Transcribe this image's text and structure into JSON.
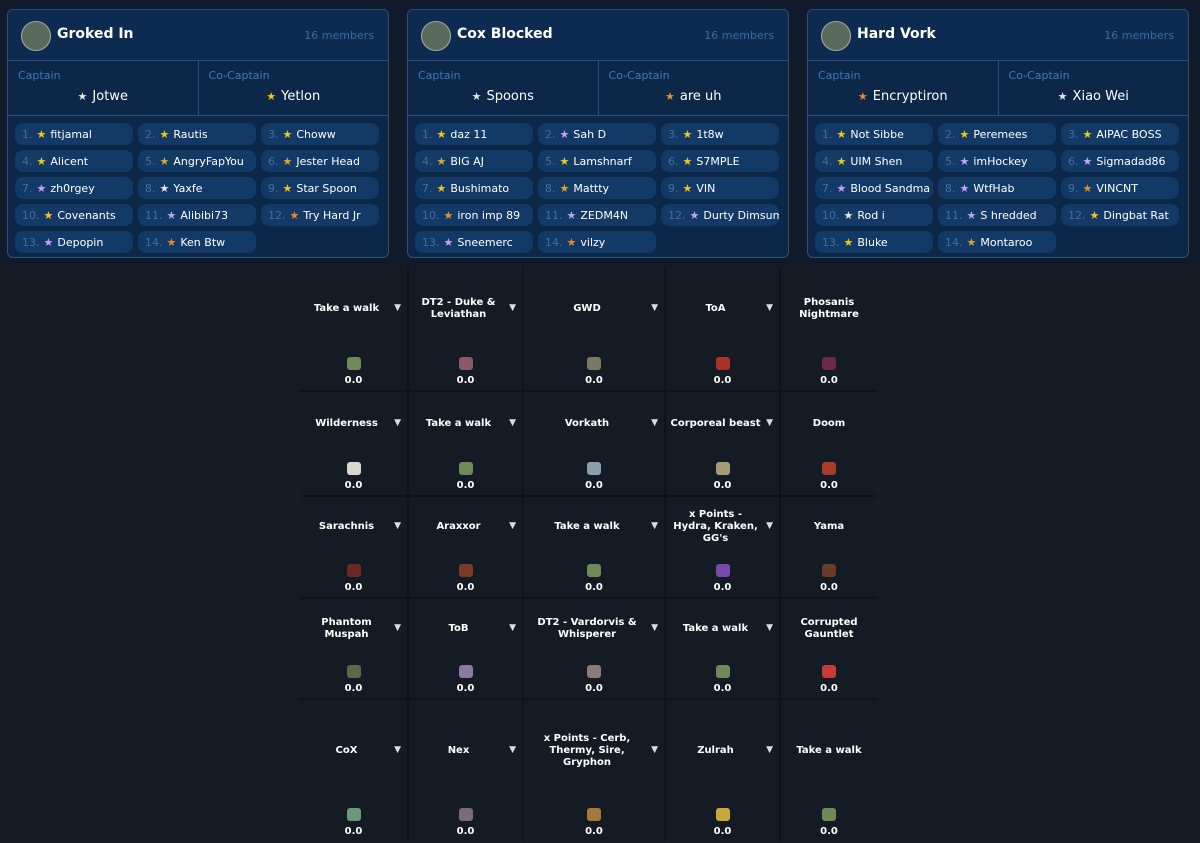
{
  "teams": [
    {
      "name": "Groked In",
      "member_count": "16 members",
      "captain_label": "Captain",
      "captain": "Jotwe",
      "captain_color": "#e8e8e8",
      "co_captain_label": "Co-Captain",
      "co_captain": "Yetlon",
      "co_captain_color": "#f5c518",
      "members": [
        {
          "rank": "1.",
          "name": "fitjamal",
          "color": "#f5c518"
        },
        {
          "rank": "2.",
          "name": "Rautis",
          "color": "#f5c518"
        },
        {
          "rank": "3.",
          "name": "Choww",
          "color": "#f5c518"
        },
        {
          "rank": "4.",
          "name": "Alicent",
          "color": "#f5c518"
        },
        {
          "rank": "5.",
          "name": "AngryFapYou",
          "color": "#e0a52a"
        },
        {
          "rank": "6.",
          "name": "Jester Head",
          "color": "#e0a52a"
        },
        {
          "rank": "7.",
          "name": "zh0rgey",
          "color": "#c9a0ff"
        },
        {
          "rank": "8.",
          "name": "Yaxfe",
          "color": "#e8e8e8"
        },
        {
          "rank": "9.",
          "name": "Star Spoon",
          "color": "#f5c518"
        },
        {
          "rank": "10.",
          "name": "Covenants",
          "color": "#f5c518"
        },
        {
          "rank": "11.",
          "name": "Alibibi73",
          "color": "#c9a0ff"
        },
        {
          "rank": "12.",
          "name": "Try Hard Jr",
          "color": "#f08a24"
        },
        {
          "rank": "13.",
          "name": "Depopin",
          "color": "#c9a0ff"
        },
        {
          "rank": "14.",
          "name": "Ken Btw",
          "color": "#f08a24"
        }
      ]
    },
    {
      "name": "Cox Blocked",
      "member_count": "16 members",
      "captain_label": "Captain",
      "captain": "Spoons",
      "captain_color": "#e8e8e8",
      "co_captain_label": "Co-Captain",
      "co_captain": "are uh",
      "co_captain_color": "#f08a24",
      "members": [
        {
          "rank": "1.",
          "name": "daz 11",
          "color": "#f5c518"
        },
        {
          "rank": "2.",
          "name": "Sah D",
          "color": "#c9a0ff"
        },
        {
          "rank": "3.",
          "name": "1t8w",
          "color": "#f5c518"
        },
        {
          "rank": "4.",
          "name": "BIG AJ",
          "color": "#e0a52a"
        },
        {
          "rank": "5.",
          "name": "Lamshnarf",
          "color": "#f5c518"
        },
        {
          "rank": "6.",
          "name": "S7MPLE",
          "color": "#f5c518"
        },
        {
          "rank": "7.",
          "name": "Bushimato",
          "color": "#f5c518"
        },
        {
          "rank": "8.",
          "name": "Mattty",
          "color": "#e0a52a"
        },
        {
          "rank": "9.",
          "name": "VIN",
          "color": "#f5c518"
        },
        {
          "rank": "10.",
          "name": "iron imp 89",
          "color": "#f08a24"
        },
        {
          "rank": "11.",
          "name": "ZEDM4N",
          "color": "#c9a0ff"
        },
        {
          "rank": "12.",
          "name": "Durty Dimsum",
          "color": "#c9a0ff"
        },
        {
          "rank": "13.",
          "name": "Sneemerc",
          "color": "#c9a0ff"
        },
        {
          "rank": "14.",
          "name": "vilzy",
          "color": "#f08a24"
        }
      ]
    },
    {
      "name": "Hard Vork",
      "member_count": "16 members",
      "captain_label": "Captain",
      "captain": "Encryptiron",
      "captain_color": "#f08a24",
      "co_captain_label": "Co-Captain",
      "co_captain": "Xiao Wei",
      "co_captain_color": "#e8e8e8",
      "members": [
        {
          "rank": "1.",
          "name": "Not Sibbe",
          "color": "#f5c518"
        },
        {
          "rank": "2.",
          "name": "Peremees",
          "color": "#f5c518"
        },
        {
          "rank": "3.",
          "name": "AIPAC BOSS",
          "color": "#f5c518"
        },
        {
          "rank": "4.",
          "name": "UIM Shen",
          "color": "#f5c518"
        },
        {
          "rank": "5.",
          "name": "imHockey",
          "color": "#c9a0ff"
        },
        {
          "rank": "6.",
          "name": "Sigmadad86",
          "color": "#c9a0ff"
        },
        {
          "rank": "7.",
          "name": "Blood Sandma",
          "color": "#c9a0ff"
        },
        {
          "rank": "8.",
          "name": "WtfHab",
          "color": "#c9a0ff"
        },
        {
          "rank": "9.",
          "name": "VINCNT",
          "color": "#f08a24"
        },
        {
          "rank": "10.",
          "name": "Rod i",
          "color": "#e8e8e8"
        },
        {
          "rank": "11.",
          "name": "S hredded",
          "color": "#c9a0ff"
        },
        {
          "rank": "12.",
          "name": "Dingbat Rat",
          "color": "#f5c518"
        },
        {
          "rank": "13.",
          "name": "Bluke",
          "color": "#f5c518"
        },
        {
          "rank": "14.",
          "name": "Montaroo",
          "color": "#e0a52a"
        }
      ]
    }
  ],
  "board": {
    "rows": [
      [
        {
          "label": "Take a walk",
          "score": "0.0",
          "icon_color": "#6e8a5a"
        },
        {
          "label": "DT2 - Duke & Leviathan",
          "score": "0.0",
          "icon_color": "#8a5a6a"
        },
        {
          "label": "GWD",
          "score": "0.0",
          "icon_color": "#7a7a62"
        },
        {
          "label": "ToA",
          "score": "0.0",
          "icon_color": "#a83228"
        },
        {
          "label": "Phosanis Nightmare",
          "score": "0.0",
          "icon_color": "#6a2a4a"
        }
      ],
      [
        {
          "label": "Wilderness",
          "score": "0.0",
          "icon_color": "#d8d8d0"
        },
        {
          "label": "Take a walk",
          "score": "0.0",
          "icon_color": "#6e8a5a"
        },
        {
          "label": "Vorkath",
          "score": "0.0",
          "icon_color": "#8aa0a8"
        },
        {
          "label": "Corporeal beast",
          "score": "0.0",
          "icon_color": "#a89a78"
        },
        {
          "label": "Doom",
          "score": "0.0",
          "icon_color": "#a83a28"
        }
      ],
      [
        {
          "label": "Sarachnis",
          "score": "0.0",
          "icon_color": "#6a2a22"
        },
        {
          "label": "Araxxor",
          "score": "0.0",
          "icon_color": "#7a3a28"
        },
        {
          "label": "Take a walk",
          "score": "0.0",
          "icon_color": "#6e8a5a"
        },
        {
          "label": "x Points - Hydra, Kraken, GG's",
          "score": "0.0",
          "icon_color": "#7a4aa8"
        },
        {
          "label": "Yama",
          "score": "0.0",
          "icon_color": "#6a3a2a"
        }
      ],
      [
        {
          "label": "Phantom Muspah",
          "score": "0.0",
          "icon_color": "#5a6a48"
        },
        {
          "label": "ToB",
          "score": "0.0",
          "icon_color": "#8a7aa0"
        },
        {
          "label": "DT2 - Vardorvis & Whisperer",
          "score": "0.0",
          "icon_color": "#8a7a7a"
        },
        {
          "label": "Take a walk",
          "score": "0.0",
          "icon_color": "#6e8a5a"
        },
        {
          "label": "Corrupted Gauntlet",
          "score": "0.0",
          "icon_color": "#c83a3a"
        }
      ],
      [
        {
          "label": "CoX",
          "score": "0.0",
          "icon_color": "#6a9a7a"
        },
        {
          "label": "Nex",
          "score": "0.0",
          "icon_color": "#7a6a7a"
        },
        {
          "label": "x Points - Cerb, Thermy, Sire, Gryphon",
          "score": "0.0",
          "icon_color": "#a8783a"
        },
        {
          "label": "Zulrah",
          "score": "0.0",
          "icon_color": "#c8a83a"
        },
        {
          "label": "Take a walk",
          "score": "0.0",
          "icon_color": "#6e8a5a"
        }
      ]
    ]
  }
}
